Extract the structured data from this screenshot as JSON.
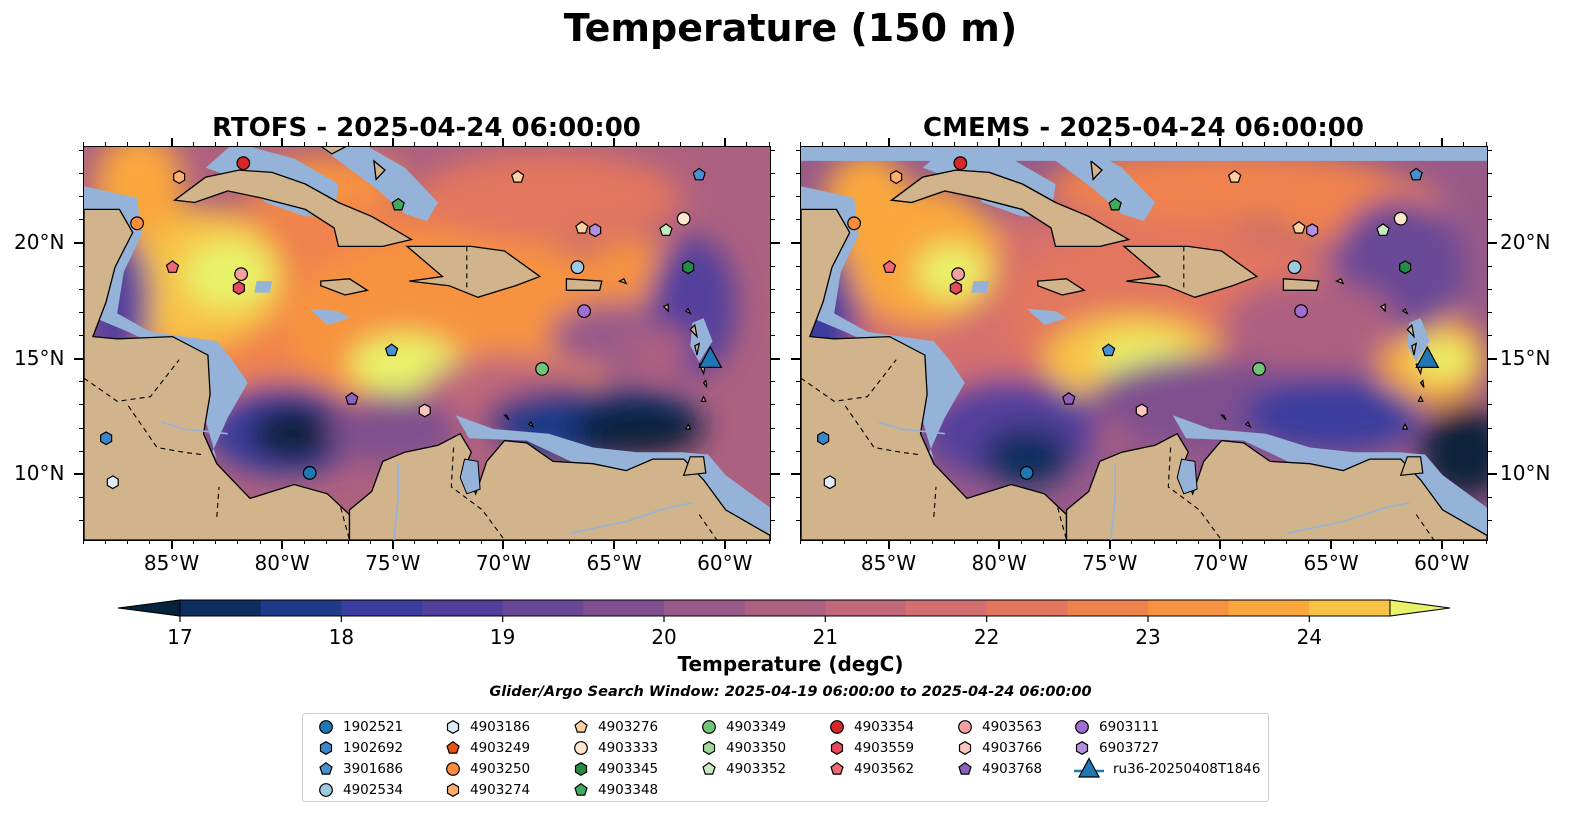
{
  "figure_title": "Temperature (150 m)",
  "panels": [
    {
      "title": "RTOFS - 2025-04-24 06:00:00"
    },
    {
      "title": "CMEMS - 2025-04-24 06:00:00"
    }
  ],
  "axes": {
    "lon_labels": [
      "85°W",
      "80°W",
      "75°W",
      "70°W",
      "65°W",
      "60°W"
    ],
    "lon_values": [
      -85,
      -80,
      -75,
      -70,
      -65,
      -60
    ],
    "lat_labels": [
      "20°N",
      "15°N",
      "10°N"
    ],
    "lat_values": [
      20,
      15,
      10
    ],
    "lon_range": [
      -89,
      -58
    ],
    "lat_range": [
      7.2,
      24.2
    ]
  },
  "colorbar": {
    "label": "Temperature (degC)",
    "ticks": [
      "17",
      "18",
      "19",
      "20",
      "21",
      "22",
      "23",
      "24"
    ],
    "tick_values": [
      17,
      18,
      19,
      20,
      21,
      22,
      23,
      24
    ],
    "range": [
      17,
      24.5
    ],
    "extend": "both",
    "colors": [
      "#07233b",
      "#0d2d5e",
      "#1f3a88",
      "#3a3d9e",
      "#523f9c",
      "#6a4896",
      "#7f4f8f",
      "#985a89",
      "#ad6180",
      "#c0687a",
      "#d36f6e",
      "#e3765e",
      "#f0824d",
      "#f79340",
      "#f9a73c",
      "#f8c244",
      "#f3e055",
      "#e8f26a"
    ]
  },
  "search_window": "Glider/Argo Search Window: 2025-04-19 06:00:00 to 2025-04-24 06:00:00",
  "colors": {
    "land": "#d1b48b",
    "shelf": "#95b3d9",
    "deep_cold": "#06243a",
    "coast": "#000000"
  },
  "legend": {
    "items": [
      {
        "id": "1902521",
        "marker": "circle",
        "color": "#1f77b4"
      },
      {
        "id": "1902692",
        "marker": "hexagon",
        "color": "#3a86c8"
      },
      {
        "id": "3901686",
        "marker": "pentagon",
        "color": "#4a90d0"
      },
      {
        "id": "4902534",
        "marker": "circle",
        "color": "#9ecae1"
      },
      {
        "id": "4903186",
        "marker": "hexagon",
        "color": "#deebf7"
      },
      {
        "id": "4903249",
        "marker": "pentagon",
        "color": "#e6550d"
      },
      {
        "id": "4903250",
        "marker": "circle",
        "color": "#fd8d3c"
      },
      {
        "id": "4903274",
        "marker": "hexagon",
        "color": "#fdae6b"
      },
      {
        "id": "4903276",
        "marker": "pentagon",
        "color": "#fdd0a2"
      },
      {
        "id": "4903333",
        "marker": "circle",
        "color": "#fee6ce"
      },
      {
        "id": "4903345",
        "marker": "hexagon",
        "color": "#238b45"
      },
      {
        "id": "4903348",
        "marker": "pentagon",
        "color": "#41ab5d"
      },
      {
        "id": "4903349",
        "marker": "circle",
        "color": "#74c476"
      },
      {
        "id": "4903350",
        "marker": "hexagon",
        "color": "#a1d99b"
      },
      {
        "id": "4903352",
        "marker": "pentagon",
        "color": "#c7e9c0"
      },
      {
        "id": "4903354",
        "marker": "circle",
        "color": "#d62728"
      },
      {
        "id": "4903559",
        "marker": "hexagon",
        "color": "#e34a5a"
      },
      {
        "id": "4903562",
        "marker": "pentagon",
        "color": "#ef6a72"
      },
      {
        "id": "4903563",
        "marker": "circle",
        "color": "#f4a0a0"
      },
      {
        "id": "4903766",
        "marker": "hexagon",
        "color": "#fcc5c0"
      },
      {
        "id": "4903768",
        "marker": "pentagon",
        "color": "#8f5fbf"
      },
      {
        "id": "6903111",
        "marker": "circle",
        "color": "#9e6fce"
      },
      {
        "id": "6903727",
        "marker": "hexagon",
        "color": "#b48ee0"
      },
      {
        "id": "ru36-20250408T1846",
        "marker": "triangle",
        "color": "#1f77b4"
      }
    ]
  },
  "observations": [
    {
      "id": "4903354",
      "lon": -81.8,
      "lat": 23.5
    },
    {
      "id": "4903274",
      "lon": -84.7,
      "lat": 22.9
    },
    {
      "id": "4903348",
      "lon": -74.8,
      "lat": 21.7
    },
    {
      "id": "4903276",
      "lon": -69.4,
      "lat": 22.9
    },
    {
      "id": "3901686",
      "lon": -61.2,
      "lat": 23.0
    },
    {
      "id": "4903250",
      "lon": -86.6,
      "lat": 20.9
    },
    {
      "id": "4903276",
      "lon": -66.5,
      "lat": 20.7
    },
    {
      "id": "6903727",
      "lon": -65.9,
      "lat": 20.6
    },
    {
      "id": "4903352",
      "lon": -62.7,
      "lat": 20.6
    },
    {
      "id": "4903333",
      "lon": -61.9,
      "lat": 21.1
    },
    {
      "id": "4903562",
      "lon": -85.0,
      "lat": 19.0
    },
    {
      "id": "4903563",
      "lon": -81.9,
      "lat": 18.7
    },
    {
      "id": "4903559",
      "lon": -82.0,
      "lat": 18.1
    },
    {
      "id": "4902534",
      "lon": -66.7,
      "lat": 19.0
    },
    {
      "id": "4903345",
      "lon": -61.7,
      "lat": 19.0
    },
    {
      "id": "6903111",
      "lon": -66.4,
      "lat": 17.1
    },
    {
      "id": "3901686",
      "lon": -75.1,
      "lat": 15.4
    },
    {
      "id": "4903349",
      "lon": -68.3,
      "lat": 14.6
    },
    {
      "id": "4903768",
      "lon": -76.9,
      "lat": 13.3
    },
    {
      "id": "4903766",
      "lon": -73.6,
      "lat": 12.8
    },
    {
      "id": "1902692",
      "lon": -88.0,
      "lat": 11.6
    },
    {
      "id": "4903186",
      "lon": -87.7,
      "lat": 9.7
    },
    {
      "id": "1902521",
      "lon": -78.8,
      "lat": 10.1
    },
    {
      "id": "ru36-20250408T1846",
      "lon": -60.7,
      "lat": 15.0
    }
  ]
}
